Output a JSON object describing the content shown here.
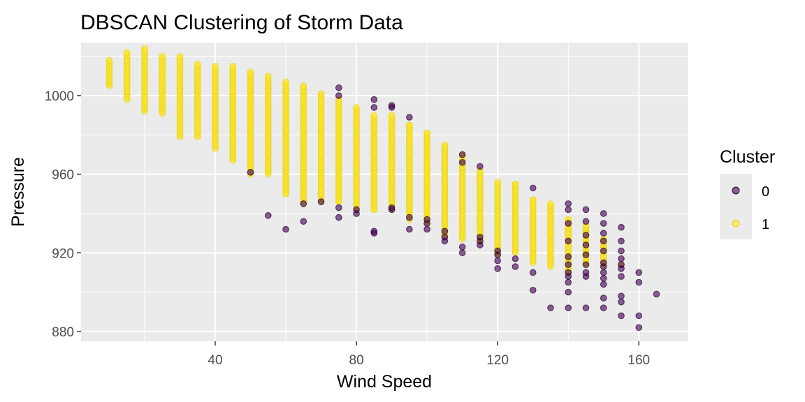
{
  "chart_data": {
    "type": "scatter",
    "title": "DBSCAN Clustering of Storm Data",
    "xlabel": "Wind Speed",
    "ylabel": "Pressure",
    "xlim": [
      2,
      174
    ],
    "ylim": [
      875,
      1027
    ],
    "x_ticks": [
      40,
      80,
      120,
      160
    ],
    "y_ticks": [
      880,
      920,
      960,
      1000
    ],
    "grid": true,
    "legend": {
      "title": "Cluster",
      "position": "right",
      "entries": [
        {
          "label": "0",
          "color": "#440154"
        },
        {
          "label": "1",
          "color": "#FDE725"
        }
      ]
    },
    "series": [
      {
        "name": "0",
        "color": "#440154",
        "points": [
          [
            50,
            961
          ],
          [
            55,
            939
          ],
          [
            60,
            932
          ],
          [
            65,
            936
          ],
          [
            65,
            945
          ],
          [
            70,
            946
          ],
          [
            75,
            938
          ],
          [
            75,
            943
          ],
          [
            75,
            1000
          ],
          [
            75,
            1004
          ],
          [
            80,
            940
          ],
          [
            80,
            942
          ],
          [
            85,
            930
          ],
          [
            85,
            931
          ],
          [
            85,
            994
          ],
          [
            85,
            998
          ],
          [
            90,
            942
          ],
          [
            90,
            943
          ],
          [
            90,
            994
          ],
          [
            90,
            995
          ],
          [
            95,
            932
          ],
          [
            95,
            938
          ],
          [
            95,
            989
          ],
          [
            100,
            932
          ],
          [
            100,
            935
          ],
          [
            100,
            937
          ],
          [
            105,
            926
          ],
          [
            105,
            928
          ],
          [
            105,
            931
          ],
          [
            110,
            920
          ],
          [
            110,
            923
          ],
          [
            110,
            966
          ],
          [
            110,
            970
          ],
          [
            115,
            924
          ],
          [
            115,
            926
          ],
          [
            115,
            928
          ],
          [
            115,
            964
          ],
          [
            120,
            912
          ],
          [
            120,
            916
          ],
          [
            120,
            919
          ],
          [
            120,
            921
          ],
          [
            125,
            913
          ],
          [
            125,
            917
          ],
          [
            130,
            901
          ],
          [
            130,
            910
          ],
          [
            130,
            953
          ],
          [
            135,
            892
          ],
          [
            140,
            892
          ],
          [
            140,
            900
          ],
          [
            140,
            905
          ],
          [
            140,
            908
          ],
          [
            140,
            910
          ],
          [
            140,
            914
          ],
          [
            140,
            918
          ],
          [
            140,
            926
          ],
          [
            140,
            935
          ],
          [
            140,
            942
          ],
          [
            140,
            945
          ],
          [
            145,
            892
          ],
          [
            145,
            908
          ],
          [
            145,
            910
          ],
          [
            145,
            914
          ],
          [
            145,
            919
          ],
          [
            145,
            924
          ],
          [
            145,
            929
          ],
          [
            145,
            936
          ],
          [
            145,
            942
          ],
          [
            150,
            892
          ],
          [
            150,
            897
          ],
          [
            150,
            904
          ],
          [
            150,
            907
          ],
          [
            150,
            910
          ],
          [
            150,
            913
          ],
          [
            150,
            915
          ],
          [
            150,
            921
          ],
          [
            150,
            926
          ],
          [
            150,
            930
          ],
          [
            150,
            935
          ],
          [
            150,
            940
          ],
          [
            155,
            888
          ],
          [
            155,
            895
          ],
          [
            155,
            898
          ],
          [
            155,
            908
          ],
          [
            155,
            912
          ],
          [
            155,
            914
          ],
          [
            155,
            917
          ],
          [
            155,
            921
          ],
          [
            155,
            926
          ],
          [
            155,
            933
          ],
          [
            160,
            882
          ],
          [
            160,
            888
          ],
          [
            160,
            905
          ],
          [
            160,
            910
          ],
          [
            165,
            899
          ]
        ]
      },
      {
        "name": "1",
        "color": "#FDE725",
        "columns": [
          {
            "x": 10,
            "min": 1005,
            "max": 1018
          },
          {
            "x": 15,
            "min": 998,
            "max": 1022
          },
          {
            "x": 20,
            "min": 992,
            "max": 1024
          },
          {
            "x": 25,
            "min": 991,
            "max": 1020
          },
          {
            "x": 30,
            "min": 979,
            "max": 1020
          },
          {
            "x": 35,
            "min": 979,
            "max": 1016
          },
          {
            "x": 40,
            "min": 973,
            "max": 1015
          },
          {
            "x": 45,
            "min": 967,
            "max": 1015
          },
          {
            "x": 50,
            "min": 960,
            "max": 1012
          },
          {
            "x": 55,
            "min": 960,
            "max": 1010
          },
          {
            "x": 60,
            "min": 950,
            "max": 1007
          },
          {
            "x": 65,
            "min": 946,
            "max": 1005
          },
          {
            "x": 70,
            "min": 946,
            "max": 1001
          },
          {
            "x": 75,
            "min": 946,
            "max": 998
          },
          {
            "x": 80,
            "min": 942,
            "max": 994
          },
          {
            "x": 85,
            "min": 942,
            "max": 990
          },
          {
            "x": 90,
            "min": 942,
            "max": 990
          },
          {
            "x": 95,
            "min": 937,
            "max": 985
          },
          {
            "x": 100,
            "min": 935,
            "max": 981
          },
          {
            "x": 105,
            "min": 929,
            "max": 975
          },
          {
            "x": 110,
            "min": 927,
            "max": 970
          },
          {
            "x": 115,
            "min": 926,
            "max": 962
          },
          {
            "x": 120,
            "min": 919,
            "max": 956
          },
          {
            "x": 125,
            "min": 920,
            "max": 955
          },
          {
            "x": 130,
            "min": 915,
            "max": 947
          },
          {
            "x": 135,
            "min": 913,
            "max": 945
          },
          {
            "x": 140,
            "min": 910,
            "max": 937
          },
          {
            "x": 145,
            "min": 914,
            "max": 934
          },
          {
            "x": 150,
            "min": 914,
            "max": 927
          }
        ],
        "points": [
          [
            60,
            950
          ],
          [
            60,
            955
          ],
          [
            65,
            945
          ],
          [
            70,
            952
          ],
          [
            75,
            946
          ],
          [
            85,
            942
          ],
          [
            95,
            985
          ],
          [
            95,
            976
          ],
          [
            100,
            981
          ],
          [
            100,
            947
          ],
          [
            105,
            930
          ],
          [
            125,
            955
          ],
          [
            130,
            947
          ],
          [
            135,
            930
          ],
          [
            135,
            922
          ],
          [
            140,
            912
          ],
          [
            140,
            937
          ],
          [
            140,
            930
          ],
          [
            145,
            930
          ],
          [
            145,
            920
          ],
          [
            150,
            922
          ],
          [
            150,
            927
          ],
          [
            155,
            914
          ]
        ]
      }
    ]
  }
}
